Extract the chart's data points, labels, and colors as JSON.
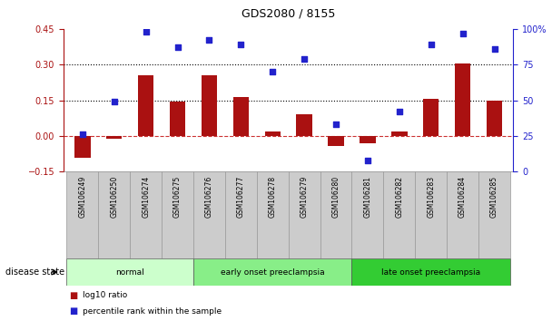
{
  "title": "GDS2080 / 8155",
  "samples": [
    "GSM106249",
    "GSM106250",
    "GSM106274",
    "GSM106275",
    "GSM106276",
    "GSM106277",
    "GSM106278",
    "GSM106279",
    "GSM106280",
    "GSM106281",
    "GSM106282",
    "GSM106283",
    "GSM106284",
    "GSM106285"
  ],
  "log10_ratio": [
    -0.09,
    -0.01,
    0.255,
    0.145,
    0.255,
    0.165,
    0.02,
    0.09,
    -0.04,
    -0.03,
    0.02,
    0.155,
    0.305,
    0.147
  ],
  "percentile_rank": [
    26,
    49,
    98,
    87,
    92,
    89,
    70,
    79,
    33,
    8,
    42,
    89,
    97,
    86
  ],
  "groups": [
    {
      "label": "normal",
      "start": 0,
      "end": 4,
      "color": "#ccffcc"
    },
    {
      "label": "early onset preeclampsia",
      "start": 4,
      "end": 9,
      "color": "#88ee88"
    },
    {
      "label": "late onset preeclampsia",
      "start": 9,
      "end": 14,
      "color": "#33cc33"
    }
  ],
  "bar_color": "#aa1111",
  "dot_color": "#2222cc",
  "ylim_left": [
    -0.15,
    0.45
  ],
  "ylim_right": [
    0,
    100
  ],
  "yticks_left": [
    -0.15,
    0.0,
    0.15,
    0.3,
    0.45
  ],
  "yticks_right": [
    0,
    25,
    50,
    75,
    100
  ],
  "hlines": [
    0.15,
    0.3
  ],
  "zero_line_color": "#cc3333",
  "grid_color": "black",
  "label_log10": "log10 ratio",
  "label_pct": "percentile rank within the sample",
  "disease_state_label": "disease state"
}
